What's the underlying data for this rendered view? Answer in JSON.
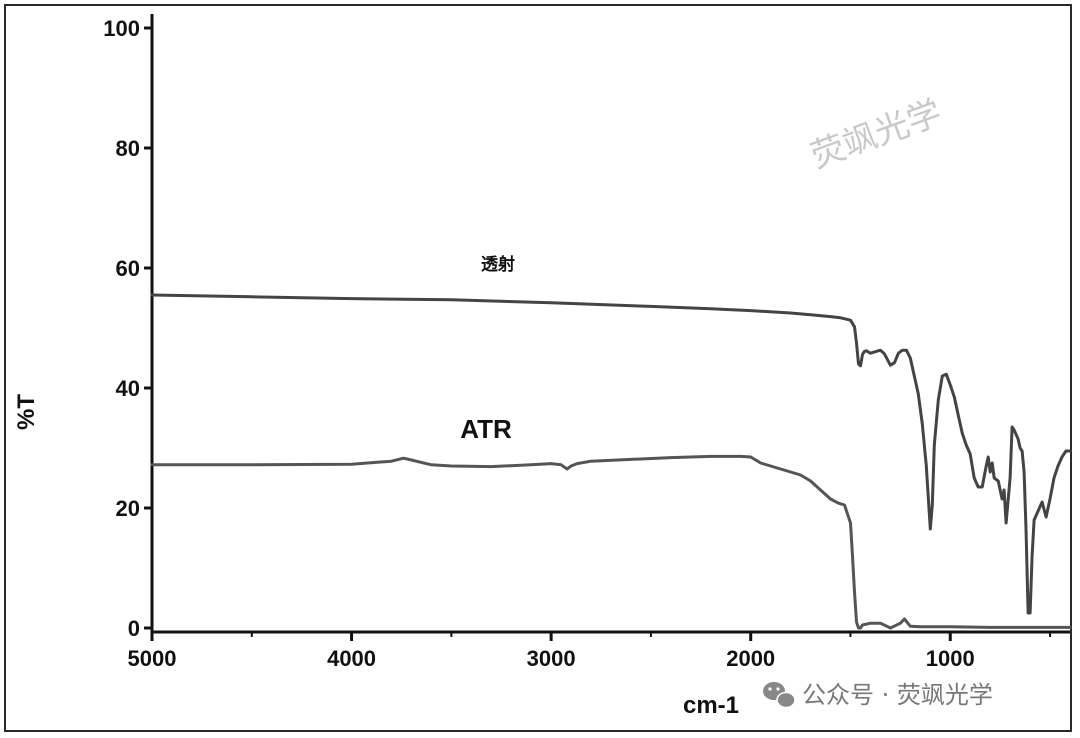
{
  "chart_data": {
    "type": "line",
    "xlabel": "cm-1",
    "ylabel": "%T",
    "xlim": [
      5000,
      400
    ],
    "ylim": [
      0,
      100
    ],
    "x_reversed": true,
    "grid": false,
    "xticks": [
      "5000",
      "4000",
      "3000",
      "2000",
      "1000"
    ],
    "yticks": [
      "0",
      "20",
      "40",
      "60",
      "80",
      "100"
    ],
    "series": [
      {
        "name": "透射",
        "color": "#444444",
        "x": [
          5000,
          4500,
          4000,
          3500,
          3000,
          2500,
          2200,
          2000,
          1800,
          1700,
          1600,
          1550,
          1500,
          1480,
          1470,
          1460,
          1450,
          1440,
          1430,
          1420,
          1400,
          1350,
          1330,
          1300,
          1280,
          1260,
          1240,
          1220,
          1200,
          1180,
          1160,
          1140,
          1120,
          1100,
          1090,
          1080,
          1060,
          1040,
          1020,
          1000,
          980,
          960,
          940,
          920,
          900,
          880,
          860,
          840,
          820,
          810,
          800,
          790,
          780,
          760,
          740,
          730,
          720,
          700,
          690,
          680,
          660,
          650,
          640,
          630,
          620,
          610,
          600,
          590,
          580,
          560,
          540,
          520,
          500,
          480,
          460,
          440,
          420,
          400
        ],
        "y": [
          55.5,
          55.2,
          54.9,
          54.7,
          54.2,
          53.6,
          53.2,
          52.9,
          52.5,
          52.2,
          51.9,
          51.7,
          51.3,
          50.2,
          47.5,
          44.0,
          43.7,
          45.6,
          46.1,
          46.2,
          45.8,
          46.3,
          45.7,
          43.8,
          44.2,
          45.8,
          46.3,
          46.3,
          45.0,
          42.0,
          39.0,
          34.0,
          27.0,
          16.5,
          20.5,
          30.5,
          38.0,
          42.0,
          42.3,
          40.5,
          38.5,
          35.5,
          32.5,
          30.5,
          29.0,
          25.0,
          23.5,
          23.5,
          27.0,
          28.5,
          26.0,
          27.5,
          25.0,
          24.5,
          21.5,
          23.0,
          17.5,
          25.0,
          33.5,
          33.0,
          31.5,
          30.0,
          29.5,
          26.0,
          16.0,
          2.5,
          2.5,
          12.0,
          18.0,
          19.5,
          21.0,
          18.5,
          21.5,
          25.0,
          27.0,
          28.5,
          29.5,
          29.5
        ]
      },
      {
        "name": "ATR",
        "color": "#555555",
        "x": [
          5000,
          4500,
          4000,
          3800,
          3740,
          3700,
          3600,
          3500,
          3300,
          3100,
          3000,
          2950,
          2920,
          2900,
          2870,
          2800,
          2600,
          2400,
          2200,
          2050,
          2000,
          1950,
          1900,
          1850,
          1800,
          1750,
          1700,
          1650,
          1600,
          1560,
          1530,
          1500,
          1490,
          1480,
          1470,
          1460,
          1450,
          1440,
          1400,
          1350,
          1300,
          1250,
          1230,
          1200,
          1150,
          1100,
          1000,
          800,
          600,
          400
        ],
        "y": [
          27.2,
          27.2,
          27.3,
          27.8,
          28.3,
          28.0,
          27.2,
          27.0,
          26.9,
          27.2,
          27.4,
          27.2,
          26.5,
          27.0,
          27.4,
          27.8,
          28.1,
          28.4,
          28.6,
          28.6,
          28.5,
          27.5,
          27.0,
          26.5,
          26.0,
          25.5,
          24.5,
          23.0,
          21.5,
          20.8,
          20.5,
          17.5,
          12.0,
          6.0,
          1.0,
          0.0,
          0.0,
          0.5,
          0.8,
          0.8,
          0.0,
          0.8,
          1.5,
          0.3,
          0.2,
          0.2,
          0.2,
          0.1,
          0.1,
          0.1
        ]
      }
    ],
    "annotations": {
      "transmission_label": "透射",
      "atr_label": "ATR"
    }
  },
  "watermark": {
    "main": "荧飒光学",
    "footer": "公众号 · 荧飒光学"
  }
}
